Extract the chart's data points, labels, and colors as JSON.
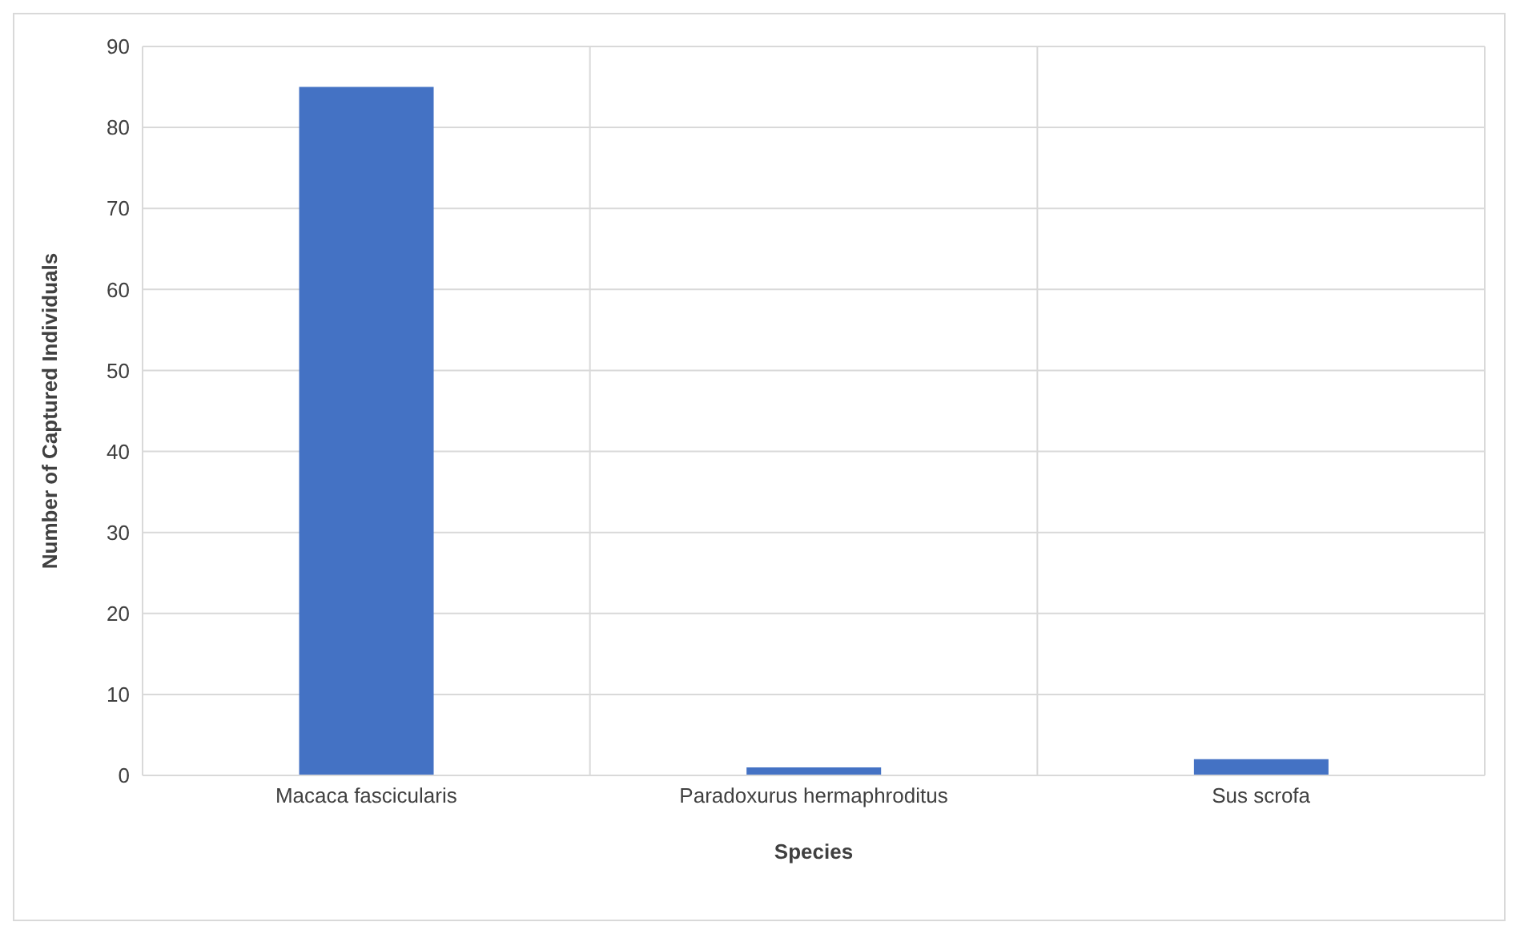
{
  "chart_data": {
    "type": "bar",
    "xlabel": "Species",
    "ylabel": "Number of Captured Individuals",
    "categories": [
      "Macaca fascicularis",
      "Paradoxurus hermaphroditus",
      "Sus scrofa"
    ],
    "values": [
      85,
      1,
      2
    ],
    "color": "#4472c4",
    "ylim": [
      0,
      90
    ],
    "yticks": [
      0,
      10,
      20,
      30,
      40,
      50,
      60,
      70,
      80,
      90
    ],
    "grid": true
  }
}
